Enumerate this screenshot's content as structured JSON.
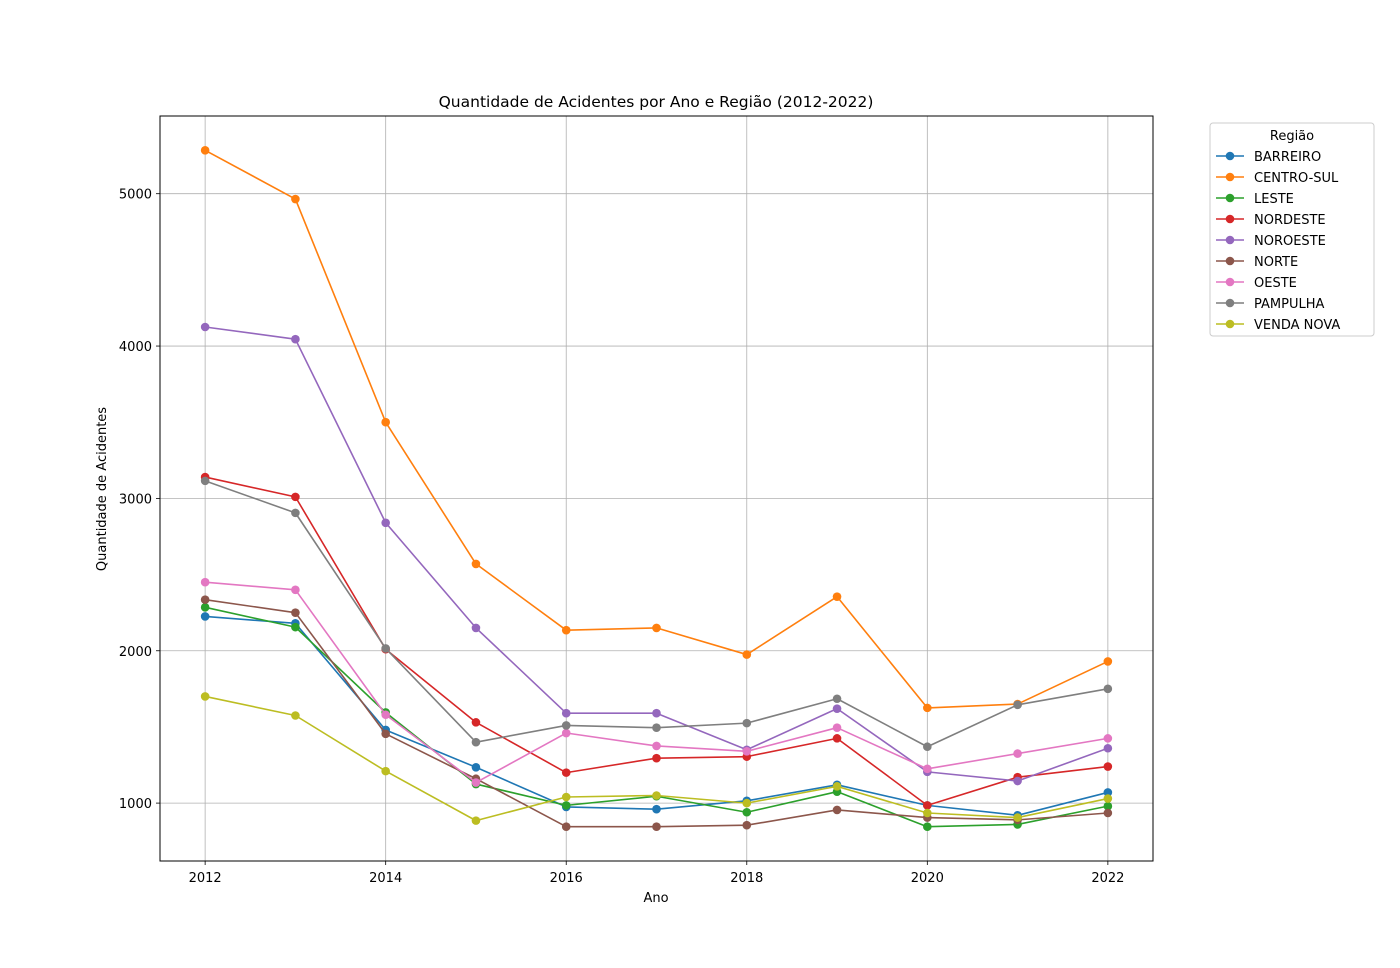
{
  "chart_data": {
    "type": "line",
    "title": "Quantidade de Acidentes por Ano e Região (2012-2022)",
    "xlabel": "Ano",
    "ylabel": "Quantidade de Acidentes",
    "x": [
      2012,
      2013,
      2014,
      2015,
      2016,
      2017,
      2018,
      2019,
      2020,
      2021,
      2022
    ],
    "xticks": [
      "2012",
      "2014",
      "2016",
      "2018",
      "2020",
      "2022"
    ],
    "yticks": [
      "1000",
      "2000",
      "3000",
      "4000",
      "5000"
    ],
    "xlim": [
      2011.5,
      2022.5
    ],
    "ylim": [
      620,
      5510
    ],
    "grid": true,
    "marker": "circle",
    "legend": {
      "title": "Região",
      "position": "outside-top-right"
    },
    "series": [
      {
        "name": "BARREIRO",
        "color": "#1f77b4",
        "values": [
          2225,
          2180,
          1480,
          1235,
          975,
          960,
          1015,
          1120,
          985,
          920,
          1070
        ]
      },
      {
        "name": "CENTRO-SUL",
        "color": "#ff7f0e",
        "values": [
          5285,
          4965,
          3500,
          2570,
          2135,
          2150,
          1975,
          2355,
          1625,
          1650,
          1930
        ]
      },
      {
        "name": "LESTE",
        "color": "#2ca02c",
        "values": [
          2285,
          2155,
          1595,
          1125,
          985,
          1045,
          940,
          1075,
          845,
          860,
          980
        ]
      },
      {
        "name": "NORDESTE",
        "color": "#d62728",
        "values": [
          3140,
          3010,
          2010,
          1530,
          1200,
          1295,
          1305,
          1425,
          985,
          1170,
          1240
        ]
      },
      {
        "name": "NOROESTE",
        "color": "#9467bd",
        "values": [
          4125,
          4045,
          2840,
          2150,
          1590,
          1590,
          1350,
          1620,
          1205,
          1145,
          1360
        ]
      },
      {
        "name": "NORTE",
        "color": "#8c564b",
        "values": [
          2335,
          2250,
          1455,
          1160,
          845,
          845,
          855,
          955,
          905,
          890,
          935
        ]
      },
      {
        "name": "OESTE",
        "color": "#e377c2",
        "values": [
          2450,
          2400,
          1580,
          1135,
          1460,
          1375,
          1340,
          1495,
          1225,
          1325,
          1425
        ]
      },
      {
        "name": "PAMPULHA",
        "color": "#7f7f7f",
        "values": [
          3115,
          2905,
          2015,
          1400,
          1510,
          1495,
          1525,
          1685,
          1370,
          1645,
          1750
        ]
      },
      {
        "name": "VENDA NOVA",
        "color": "#bcbd22",
        "values": [
          1700,
          1575,
          1210,
          885,
          1040,
          1050,
          1000,
          1110,
          935,
          905,
          1030
        ]
      }
    ]
  }
}
